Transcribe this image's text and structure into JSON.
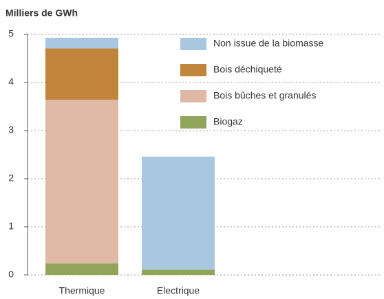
{
  "chart_data": {
    "type": "stacked_bar",
    "title": "Milliers de GWh",
    "categories": [
      "Thermique",
      "Electrique"
    ],
    "series": [
      {
        "name": "Non issue de la biomasse",
        "color": "#a9c8e0",
        "values": [
          0.22,
          2.35
        ]
      },
      {
        "name": "Bois déchiqueté",
        "color": "#c0853a",
        "values": [
          1.07,
          0
        ]
      },
      {
        "name": "Bois bûches et granulés",
        "color": "#dfb9a6",
        "values": [
          3.4,
          0
        ]
      },
      {
        "name": "Biogaz",
        "color": "#8fa55a",
        "values": [
          0.24,
          0.11
        ]
      }
    ],
    "ylim": [
      0,
      5
    ],
    "yticks": [
      0,
      1,
      2,
      3,
      4,
      5
    ],
    "grid": true,
    "legend": "top-right"
  }
}
